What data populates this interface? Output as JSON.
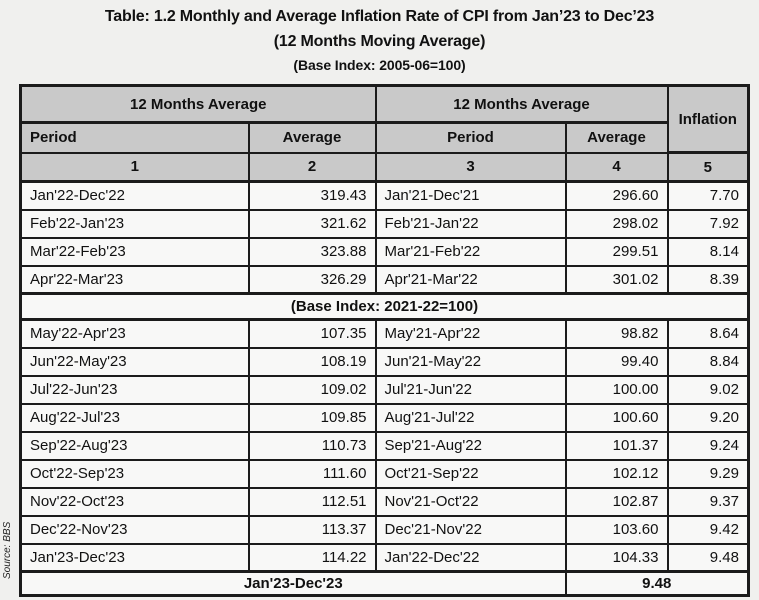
{
  "title": {
    "line1": "Table: 1.2 Monthly and Average Inflation Rate of CPI from Jan’23 to Dec’23",
    "line2": "(12 Months Moving Average)",
    "line3": "(Base Index: 2005-06=100)"
  },
  "source_note": "Source: BBS",
  "colors": {
    "page-bg": "#f0f0ee",
    "cell-bg": "#f8f8f7",
    "header-bg": "#c9c9c9",
    "border": "#1b1b1b"
  },
  "table": {
    "header": {
      "group_left": "12 Months Average",
      "group_right": "12 Months Average",
      "inflation": "Inflation",
      "period_left": "Period",
      "average_left": "Average",
      "period_right": "Period",
      "average_right": "Average",
      "col_numbers": [
        "1",
        "2",
        "3",
        "4",
        "5"
      ]
    },
    "rows_top": [
      {
        "period_a": "Jan'22-Dec'22",
        "avg_a": "319.43",
        "period_b": "Jan'21-Dec'21",
        "avg_b": "296.60",
        "inflation": "7.70"
      },
      {
        "period_a": "Feb'22-Jan'23",
        "avg_a": "321.62",
        "period_b": "Feb'21-Jan'22",
        "avg_b": "298.02",
        "inflation": "7.92"
      },
      {
        "period_a": "Mar'22-Feb'23",
        "avg_a": "323.88",
        "period_b": "Mar'21-Feb'22",
        "avg_b": "299.51",
        "inflation": "8.14"
      },
      {
        "period_a": "Apr'22-Mar'23",
        "avg_a": "326.29",
        "period_b": "Apr'21-Mar'22",
        "avg_b": "301.02",
        "inflation": "8.39"
      }
    ],
    "base_row_label": "(Base Index: 2021-22=100)",
    "rows_bottom": [
      {
        "period_a": "May'22-Apr'23",
        "avg_a": "107.35",
        "period_b": "May'21-Apr'22",
        "avg_b": "98.82",
        "inflation": "8.64"
      },
      {
        "period_a": "Jun'22-May'23",
        "avg_a": "108.19",
        "period_b": "Jun'21-May'22",
        "avg_b": "99.40",
        "inflation": "8.84"
      },
      {
        "period_a": "Jul'22-Jun'23",
        "avg_a": "109.02",
        "period_b": "Jul'21-Jun'22",
        "avg_b": "100.00",
        "inflation": "9.02"
      },
      {
        "period_a": "Aug'22-Jul'23",
        "avg_a": "109.85",
        "period_b": "Aug'21-Jul'22",
        "avg_b": "100.60",
        "inflation": "9.20"
      },
      {
        "period_a": "Sep'22-Aug'23",
        "avg_a": "110.73",
        "period_b": "Sep'21-Aug'22",
        "avg_b": "101.37",
        "inflation": "9.24"
      },
      {
        "period_a": "Oct'22-Sep'23",
        "avg_a": "111.60",
        "period_b": "Oct'21-Sep'22",
        "avg_b": "102.12",
        "inflation": "9.29"
      },
      {
        "period_a": "Nov'22-Oct'23",
        "avg_a": "112.51",
        "period_b": "Nov'21-Oct'22",
        "avg_b": "102.87",
        "inflation": "9.37"
      },
      {
        "period_a": "Dec'22-Nov'23",
        "avg_a": "113.37",
        "period_b": "Dec'21-Nov'22",
        "avg_b": "103.60",
        "inflation": "9.42"
      },
      {
        "period_a": "Jan'23-Dec'23",
        "avg_a": "114.22",
        "period_b": "Jan'22-Dec'22",
        "avg_b": "104.33",
        "inflation": "9.48"
      }
    ],
    "footer": {
      "period": "Jan'23-Dec'23",
      "inflation": "9.48"
    }
  }
}
